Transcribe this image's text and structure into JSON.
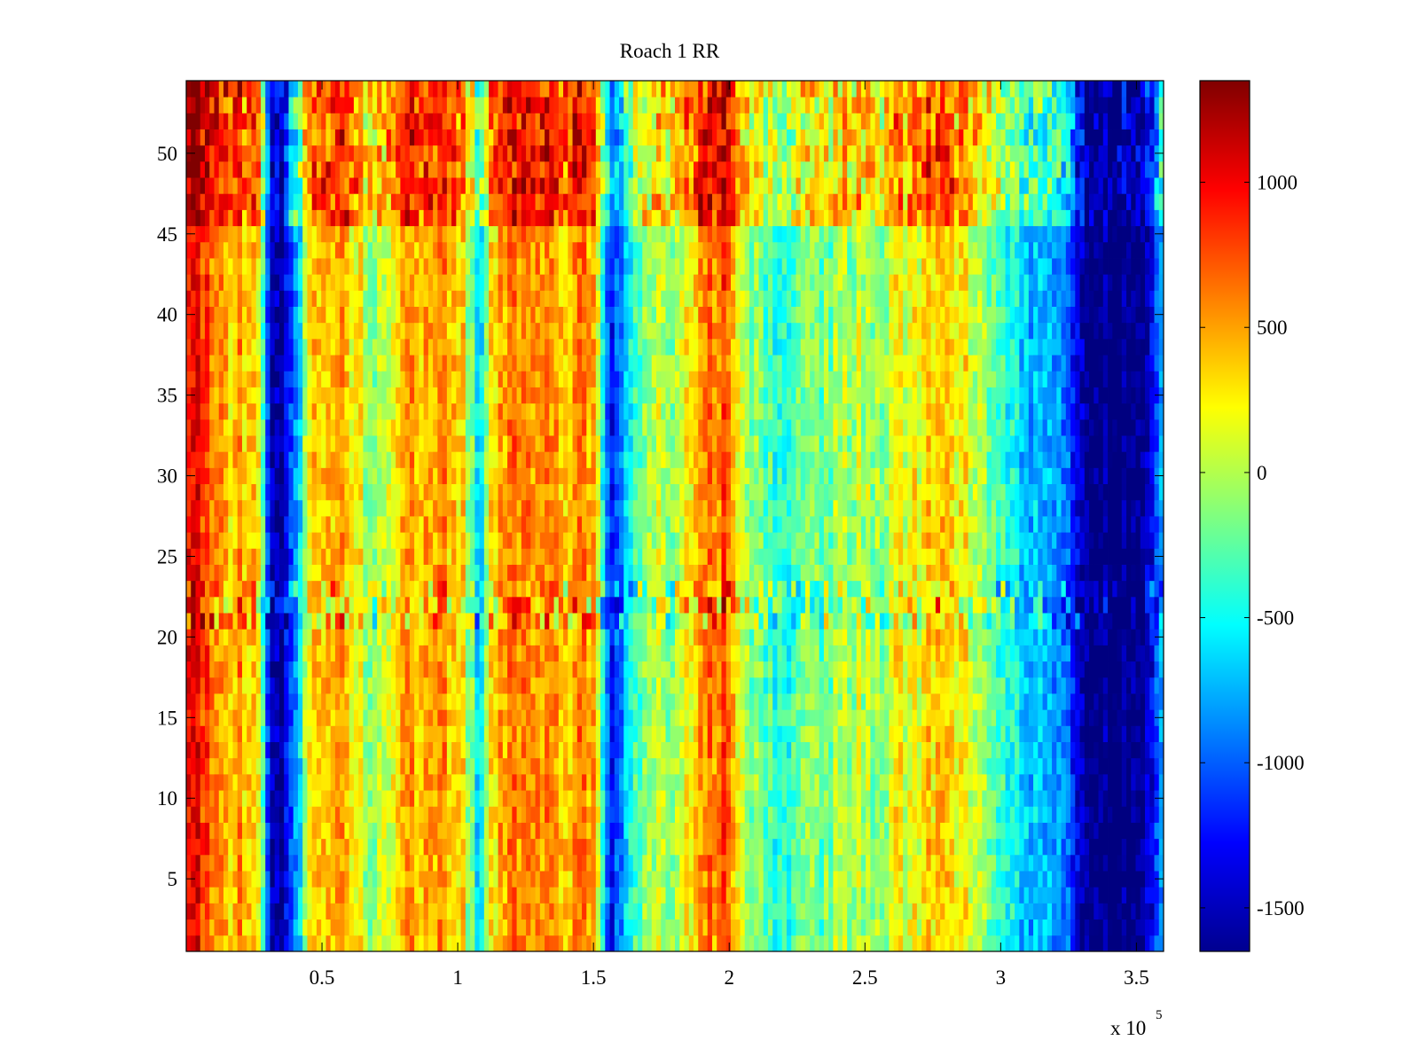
{
  "chart_data": {
    "type": "heatmap",
    "title": "Roach 1 RR",
    "xlabel": "",
    "ylabel": "",
    "x_multiplier_label": "x 10",
    "x_multiplier_exponent": "5",
    "xlim": [
      0,
      360000
    ],
    "ylim": [
      0.5,
      54.5
    ],
    "xticks": [
      {
        "value": 50000,
        "label": "0.5"
      },
      {
        "value": 100000,
        "label": "1"
      },
      {
        "value": 150000,
        "label": "1.5"
      },
      {
        "value": 200000,
        "label": "2"
      },
      {
        "value": 250000,
        "label": "2.5"
      },
      {
        "value": 300000,
        "label": "3"
      },
      {
        "value": 350000,
        "label": "3.5"
      }
    ],
    "yticks": [
      {
        "value": 5,
        "label": "5"
      },
      {
        "value": 10,
        "label": "10"
      },
      {
        "value": 15,
        "label": "15"
      },
      {
        "value": 20,
        "label": "20"
      },
      {
        "value": 25,
        "label": "25"
      },
      {
        "value": 30,
        "label": "30"
      },
      {
        "value": 35,
        "label": "35"
      },
      {
        "value": 40,
        "label": "40"
      },
      {
        "value": 45,
        "label": "45"
      },
      {
        "value": 50,
        "label": "50"
      }
    ],
    "rows": 54,
    "colormap": "jet",
    "clim": [
      -1650,
      1350
    ],
    "colorbar_ticks": [
      {
        "value": 1000,
        "label": "1000"
      },
      {
        "value": 500,
        "label": "500"
      },
      {
        "value": 0,
        "label": "0"
      },
      {
        "value": -500,
        "label": "-500"
      },
      {
        "value": -1000,
        "label": "-1000"
      },
      {
        "value": -1500,
        "label": "-1500"
      }
    ],
    "column_profile": {
      "x": [
        0,
        8000,
        14000,
        20000,
        27000,
        31000,
        35000,
        41000,
        46000,
        52000,
        58000,
        62000,
        68000,
        75000,
        82000,
        88000,
        95000,
        101000,
        105000,
        108000,
        112000,
        118000,
        125000,
        132000,
        138000,
        145000,
        151000,
        155000,
        158000,
        162000,
        168000,
        172000,
        178000,
        185000,
        192000,
        198000,
        202000,
        208000,
        215000,
        222000,
        228000,
        235000,
        242000,
        248000,
        255000,
        262000,
        268000,
        275000,
        280000,
        285000,
        292000,
        298000,
        303000,
        310000,
        318000,
        325000,
        329000,
        335000,
        342000,
        349000,
        353000,
        357000,
        360000
      ],
      "values": [
        1000,
        800,
        350,
        550,
        150,
        -1500,
        -1550,
        -650,
        300,
        350,
        550,
        250,
        -100,
        150,
        450,
        500,
        550,
        400,
        -200,
        -750,
        300,
        600,
        550,
        650,
        450,
        550,
        450,
        -1000,
        -1200,
        -600,
        -250,
        50,
        -100,
        250,
        550,
        700,
        300,
        -100,
        -300,
        -350,
        -250,
        -200,
        -50,
        0,
        -150,
        200,
        150,
        350,
        450,
        250,
        50,
        -300,
        -500,
        -650,
        -800,
        -900,
        -1600,
        -1650,
        -1650,
        -1650,
        -1600,
        -1200,
        -800
      ],
      "top_band_rows": [
        46,
        54
      ],
      "band_rows": [
        21,
        23
      ]
    }
  }
}
